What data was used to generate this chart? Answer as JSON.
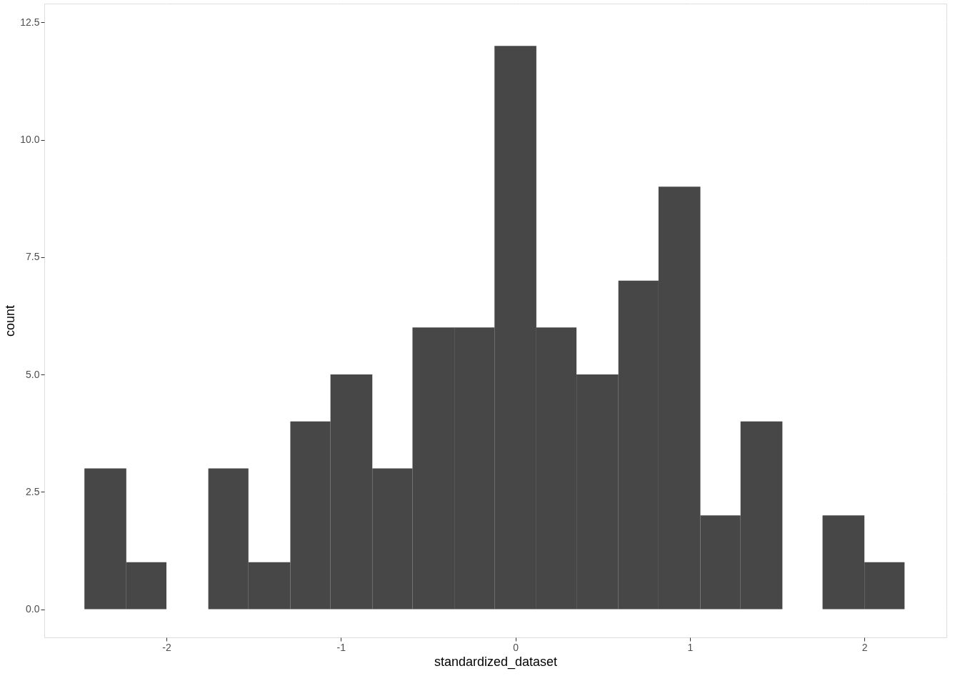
{
  "chart_data": {
    "type": "histogram",
    "xlabel": "standardized_dataset",
    "ylabel": "count",
    "bins": [
      -2.47,
      -2.23,
      -2.0,
      -1.76,
      -1.53,
      -1.29,
      -1.06,
      -0.82,
      -0.59,
      -0.35,
      -0.12,
      0.12,
      0.35,
      0.59,
      0.82,
      1.06,
      1.29,
      1.53,
      1.76,
      2.0,
      2.23
    ],
    "values": [
      3,
      1,
      0,
      3,
      1,
      4,
      5,
      3,
      6,
      6,
      12,
      6,
      5,
      7,
      9,
      2,
      4,
      0,
      2,
      1
    ],
    "color": "#474747",
    "xlim": [
      -2.7,
      2.47
    ],
    "xticks": [
      -2,
      -1,
      0,
      1,
      2
    ],
    "ylim": [
      -0.6,
      12.9
    ],
    "yticks": [
      {
        "value": 0,
        "label": "0.0"
      },
      2.5,
      {
        "value": 5,
        "label": "5.0"
      },
      7.5,
      {
        "value": 10,
        "label": "10.0"
      },
      12.5
    ],
    "grid": true
  }
}
